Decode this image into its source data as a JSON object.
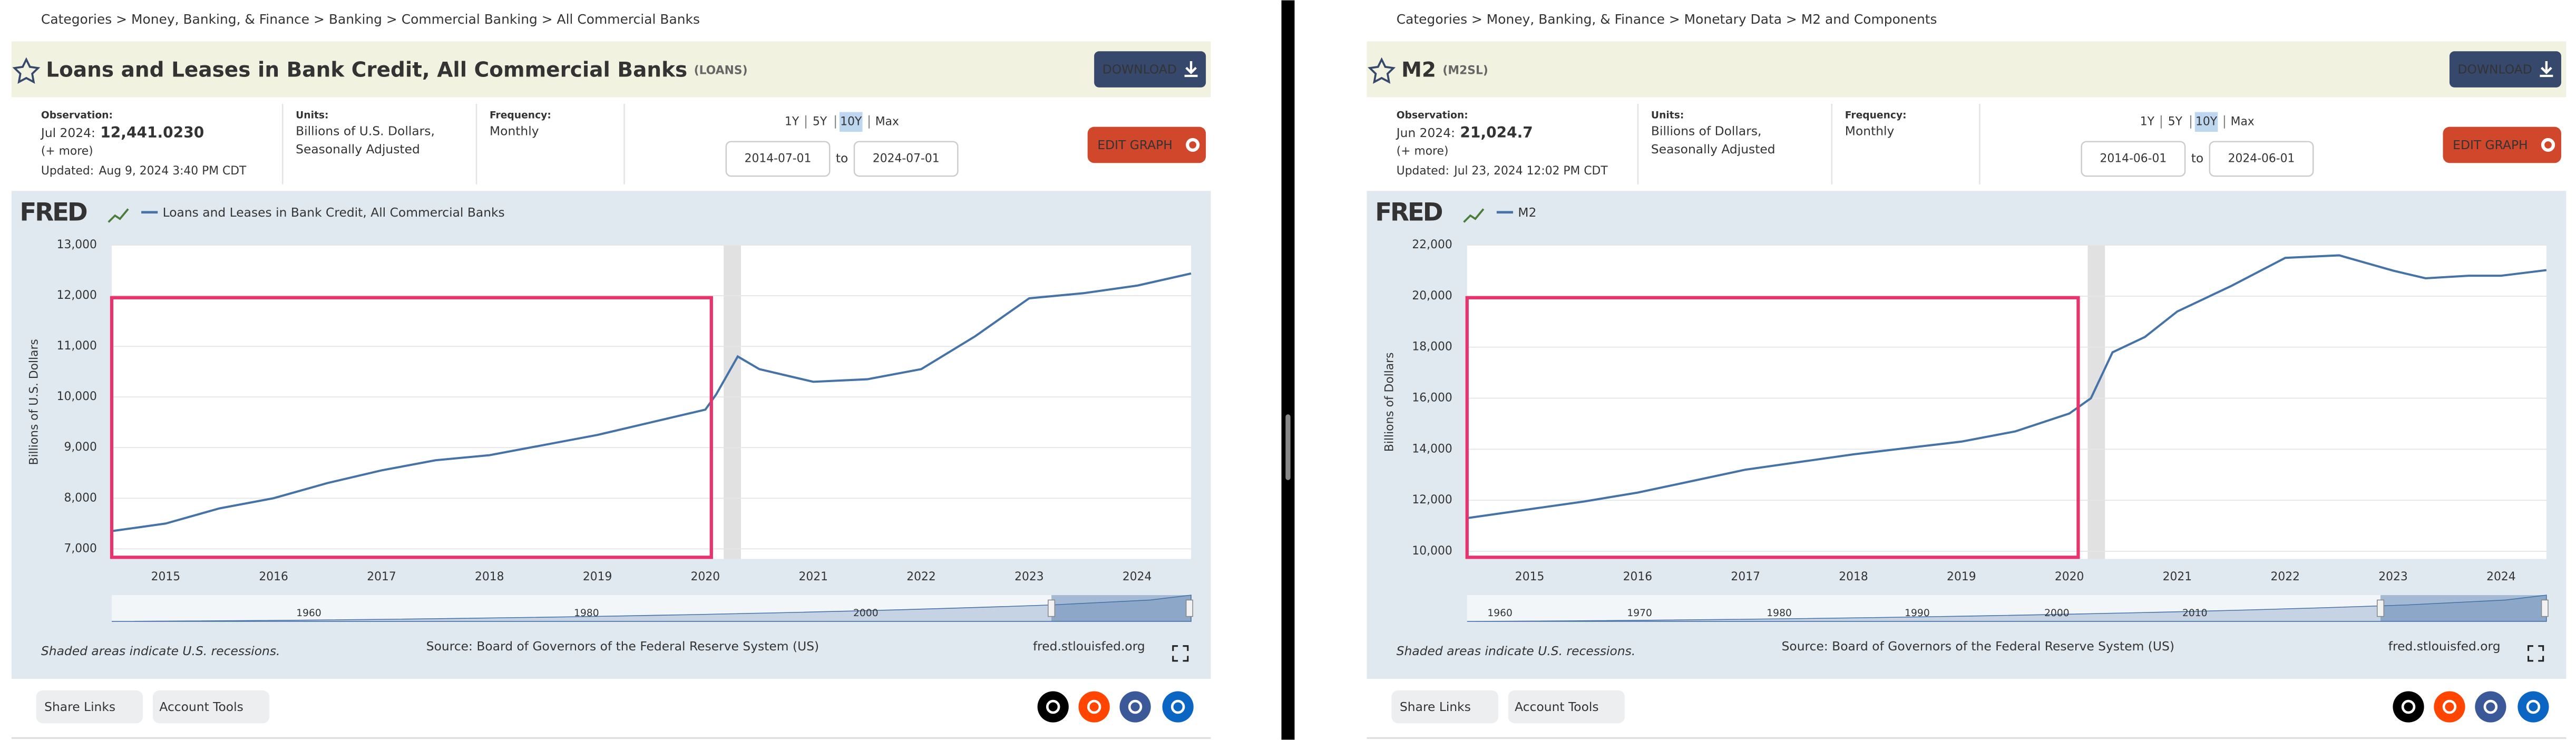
{
  "pages": [
    {
      "breadcrumb": "Categories > Money, Banking, & Finance > Banking > Commercial Banking > All Commercial Banks",
      "title": "Loans and Leases in Bank Credit, All Commercial Banks",
      "series_id": "(LOANS)",
      "download": "DOWNLOAD",
      "observation_label": "Observation:",
      "observation_date": "Jul 2024:",
      "observation_value": "12,441.0230",
      "more": "(+ more)",
      "updated_label": "Updated:",
      "updated": "Aug 9, 2024 3:40 PM CDT",
      "units_label": "Units:",
      "units": [
        "Billions of U.S. Dollars,",
        "Seasonally Adjusted"
      ],
      "frequency_label": "Frequency:",
      "frequency": "Monthly",
      "ranges": [
        "1Y",
        "5Y",
        "10Y",
        "Max"
      ],
      "start_date": "2014-07-01",
      "to": "to",
      "end_date": "2024-07-01",
      "edit_graph": "EDIT GRAPH",
      "logo": "FRED",
      "recession_note": "Shaded areas indicate U.S. recessions.",
      "source": "Source: Board of Governors of the Federal Reserve System (US)",
      "site": "fred.stlouisfed.org",
      "share_links": "Share Links",
      "account_tools": "Account Tools",
      "navigator_labels": [
        1960,
        1980,
        2000
      ]
    },
    {
      "breadcrumb": "Categories > Money, Banking, & Finance > Monetary Data > M2 and Components",
      "title": "M2",
      "series_id": "(M2SL)",
      "download": "DOWNLOAD",
      "observation_label": "Observation:",
      "observation_date": "Jun 2024:",
      "observation_value": "21,024.7",
      "more": "(+ more)",
      "updated_label": "Updated:",
      "updated": "Jul 23, 2024 12:02 PM CDT",
      "units_label": "Units:",
      "units": [
        "Billions of Dollars,",
        "Seasonally Adjusted"
      ],
      "frequency_label": "Frequency:",
      "frequency": "Monthly",
      "ranges": [
        "1Y",
        "5Y",
        "10Y",
        "Max"
      ],
      "start_date": "2014-06-01",
      "to": "to",
      "end_date": "2024-06-01",
      "edit_graph": "EDIT GRAPH",
      "logo": "FRED",
      "recession_note": "Shaded areas indicate U.S. recessions.",
      "source": "Source: Board of Governors of the Federal Reserve System (US)",
      "site": "fred.stlouisfed.org",
      "share_links": "Share Links",
      "account_tools": "Account Tools",
      "navigator_labels": [
        1960,
        1970,
        1980,
        1990,
        2000,
        2010
      ]
    }
  ],
  "chart_data": [
    {
      "type": "line",
      "y_label": "Billions of U.S. Dollars",
      "grid": true,
      "xlim": [
        2014.5,
        2024.5
      ],
      "ylim": [
        6800,
        13000
      ],
      "xticks": [
        2015,
        2016,
        2017,
        2018,
        2019,
        2020,
        2021,
        2022,
        2023,
        2024
      ],
      "yticks": [
        {
          "value": 7000,
          "label": "7,000"
        },
        {
          "value": 8000,
          "label": "8,000"
        },
        {
          "value": 9000,
          "label": "9,000"
        },
        {
          "value": 10000,
          "label": "10,000"
        },
        {
          "value": 11000,
          "label": "11,000"
        },
        {
          "value": 12000,
          "label": "12,000"
        },
        {
          "value": 13000,
          "label": "13,000"
        }
      ],
      "recessions": [
        [
          2020.17,
          2020.33
        ]
      ],
      "x": [
        2014.5,
        2015,
        2015.5,
        2016,
        2016.5,
        2017,
        2017.5,
        2018,
        2018.5,
        2019,
        2019.5,
        2020,
        2020.1,
        2020.3,
        2020.5,
        2021,
        2021.5,
        2022,
        2022.5,
        2023,
        2023.5,
        2024,
        2024.5
      ],
      "series": [
        {
          "name": "Loans and Leases in Bank Credit, All Commercial Banks",
          "color": "#4572a7",
          "values": [
            7350,
            7500,
            7800,
            8000,
            8300,
            8550,
            8750,
            8850,
            9050,
            9250,
            9500,
            9750,
            10050,
            10800,
            10550,
            10300,
            10350,
            10550,
            11200,
            11950,
            12050,
            12200,
            12440
          ]
        }
      ]
    },
    {
      "type": "line",
      "y_label": "Billions of Dollars",
      "grid": true,
      "xlim": [
        2014.42,
        2024.42
      ],
      "ylim": [
        9700,
        22000
      ],
      "xticks": [
        2015,
        2016,
        2017,
        2018,
        2019,
        2020,
        2021,
        2022,
        2023,
        2024
      ],
      "yticks": [
        {
          "value": 10000,
          "label": "10,000"
        },
        {
          "value": 12000,
          "label": "12,000"
        },
        {
          "value": 14000,
          "label": "14,000"
        },
        {
          "value": 16000,
          "label": "16,000"
        },
        {
          "value": 18000,
          "label": "18,000"
        },
        {
          "value": 20000,
          "label": "20,000"
        },
        {
          "value": 22000,
          "label": "22,000"
        }
      ],
      "recessions": [
        [
          2020.17,
          2020.33
        ]
      ],
      "x": [
        2014.42,
        2015,
        2015.5,
        2016,
        2016.5,
        2017,
        2017.5,
        2018,
        2018.5,
        2019,
        2019.5,
        2020,
        2020.2,
        2020.4,
        2020.7,
        2021,
        2021.5,
        2022,
        2022.5,
        2023,
        2023.3,
        2023.7,
        2024,
        2024.42
      ],
      "series": [
        {
          "name": "M2",
          "color": "#4572a7",
          "values": [
            11300,
            11650,
            11950,
            12300,
            12750,
            13200,
            13500,
            13800,
            14050,
            14300,
            14700,
            15400,
            16000,
            17800,
            18400,
            19400,
            20400,
            21500,
            21600,
            21000,
            20700,
            20800,
            20800,
            21020
          ]
        }
      ]
    }
  ]
}
